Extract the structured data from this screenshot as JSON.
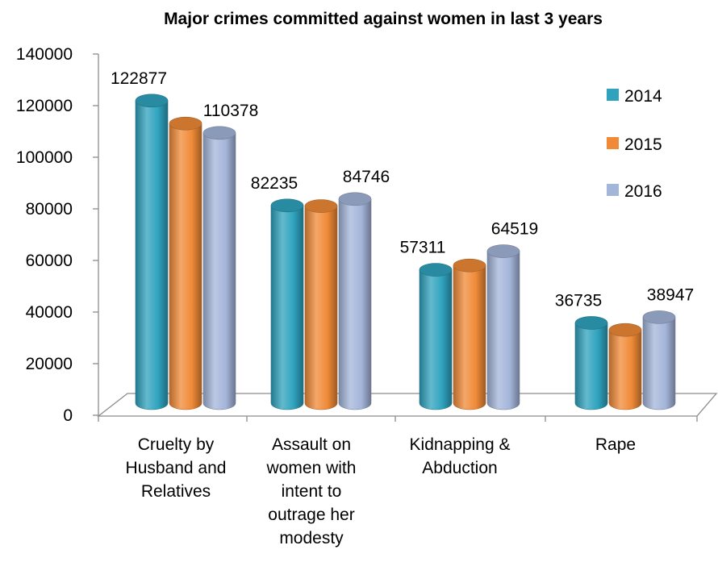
{
  "chart_data": {
    "type": "bar",
    "title": "Major crimes committed against women in last 3 years",
    "categories": [
      "Cruelty by Husband and Relatives",
      "Assault on women with intent to outrage her modesty",
      "Kidnapping & Abduction",
      "Rape"
    ],
    "category_lines": [
      [
        "Cruelty by",
        "Husband and",
        "Relatives"
      ],
      [
        "Assault on",
        "women with",
        "intent to",
        "outrage her",
        "modesty"
      ],
      [
        "Kidnapping &",
        "Abduction"
      ],
      [
        "Rape"
      ]
    ],
    "series": [
      {
        "name": "2014",
        "color": "#2FA3BE",
        "values": [
          122877,
          82235,
          57311,
          36735
        ]
      },
      {
        "name": "2015",
        "color": "#F08A37",
        "values": [
          114000,
          82000,
          59000,
          34000
        ]
      },
      {
        "name": "2016",
        "color": "#A4B5DA",
        "values": [
          110378,
          84746,
          64519,
          38947
        ]
      }
    ],
    "data_labels": [
      {
        "series": 0,
        "category": 0,
        "text": "122877"
      },
      {
        "series": 2,
        "category": 0,
        "text": "110378"
      },
      {
        "series": 0,
        "category": 1,
        "text": "82235"
      },
      {
        "series": 2,
        "category": 1,
        "text": "84746"
      },
      {
        "series": 0,
        "category": 2,
        "text": "57311"
      },
      {
        "series": 2,
        "category": 2,
        "text": "64519"
      },
      {
        "series": 0,
        "category": 3,
        "text": "36735"
      },
      {
        "series": 2,
        "category": 3,
        "text": "38947"
      }
    ],
    "ylim": [
      0,
      140000
    ],
    "yticks": [
      "0",
      "20000",
      "40000",
      "60000",
      "80000",
      "100000",
      "120000",
      "140000"
    ],
    "legend": "right",
    "grid": false
  }
}
